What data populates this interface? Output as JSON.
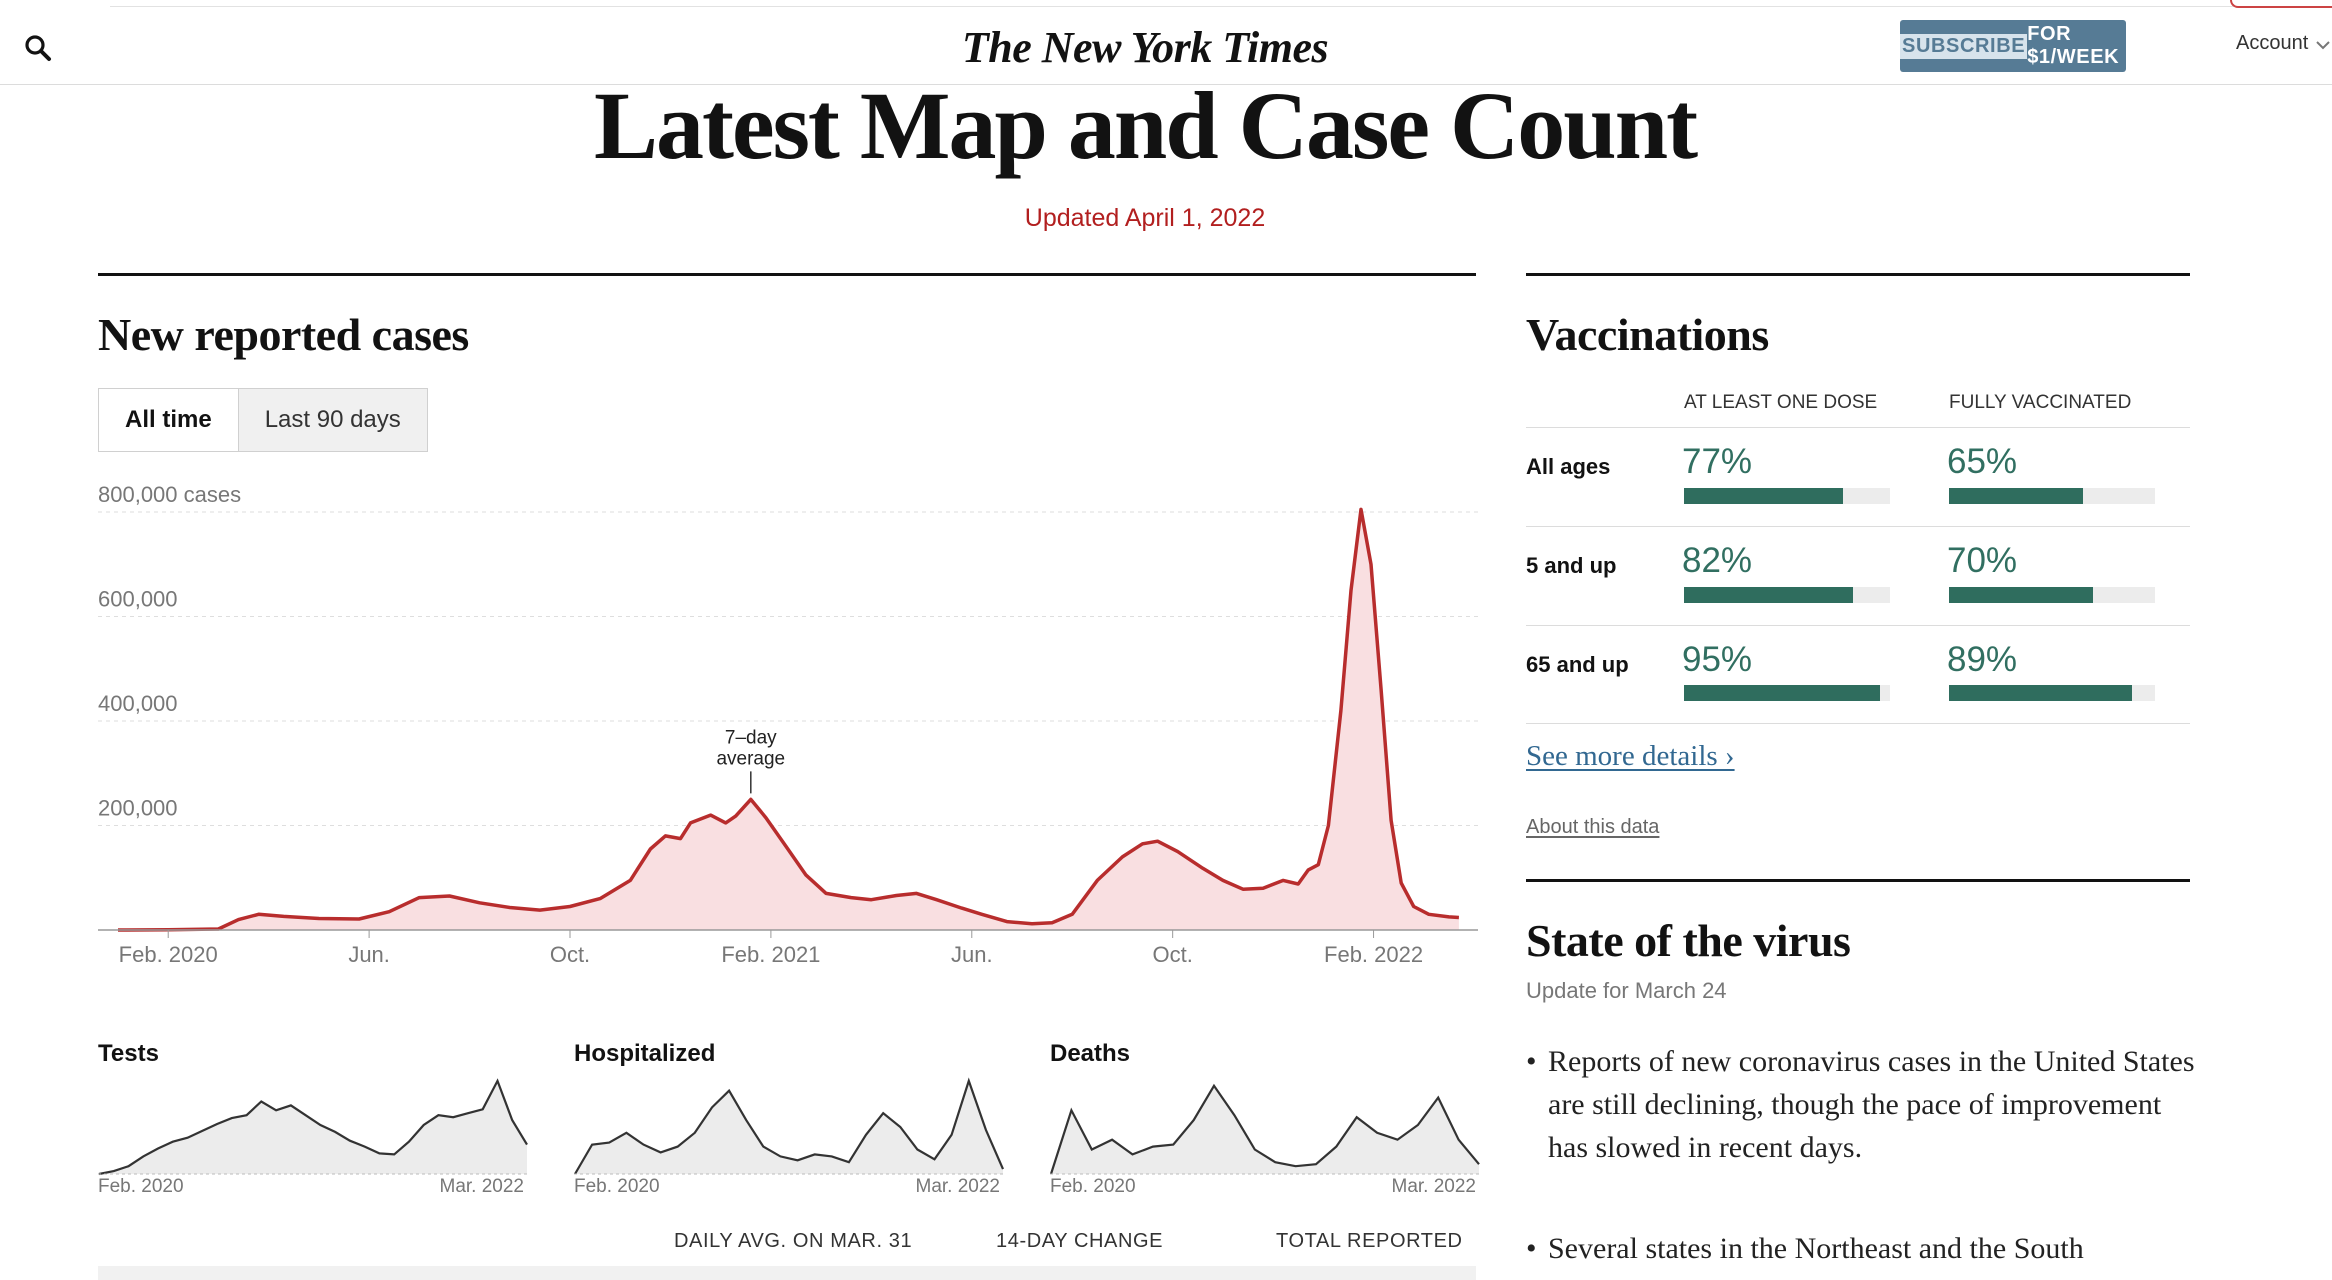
{
  "header": {
    "masthead": "The New York Times",
    "subscribe_highlight": "SUBSCRIBE",
    "subscribe_rest": " FOR $1/WEEK",
    "account": "Account"
  },
  "hero": {
    "title": "Latest Map and Case Count",
    "updated": "Updated April 1, 2022"
  },
  "cases": {
    "title": "New reported cases",
    "toggle": [
      "All time",
      "Last 90 days"
    ],
    "annotation": [
      "7–day",
      "average"
    ]
  },
  "chart_data": [
    {
      "type": "area",
      "title": "New reported cases",
      "series_label": "7–day average",
      "ylabel": "cases",
      "ylim": [
        0,
        800000
      ],
      "y_ticks": [
        {
          "value": 800000,
          "label": "800,000 cases"
        },
        {
          "value": 600000,
          "label": "600,000"
        },
        {
          "value": 400000,
          "label": "400,000"
        },
        {
          "value": 200000,
          "label": "200,000"
        }
      ],
      "x_ticks": [
        "Feb. 2020",
        "Jun.",
        "Oct.",
        "Feb. 2021",
        "Jun.",
        "Oct.",
        "Feb. 2022"
      ],
      "x_tick_months": [
        1,
        5,
        9,
        13,
        17,
        21,
        25
      ],
      "month_range": [
        0,
        27
      ],
      "points": [
        [
          0.0,
          0
        ],
        [
          1.0,
          500
        ],
        [
          2.0,
          2000
        ],
        [
          2.4,
          20000
        ],
        [
          2.8,
          30000
        ],
        [
          3.3,
          26000
        ],
        [
          4.0,
          22000
        ],
        [
          4.8,
          21000
        ],
        [
          5.4,
          35000
        ],
        [
          6.0,
          62000
        ],
        [
          6.6,
          65000
        ],
        [
          7.2,
          52000
        ],
        [
          7.8,
          43000
        ],
        [
          8.4,
          38000
        ],
        [
          9.0,
          45000
        ],
        [
          9.6,
          60000
        ],
        [
          10.2,
          95000
        ],
        [
          10.6,
          155000
        ],
        [
          10.9,
          180000
        ],
        [
          11.2,
          175000
        ],
        [
          11.4,
          205000
        ],
        [
          11.8,
          220000
        ],
        [
          12.1,
          205000
        ],
        [
          12.3,
          218000
        ],
        [
          12.6,
          250000
        ],
        [
          12.9,
          215000
        ],
        [
          13.3,
          160000
        ],
        [
          13.7,
          105000
        ],
        [
          14.1,
          70000
        ],
        [
          14.6,
          62000
        ],
        [
          15.0,
          58000
        ],
        [
          15.5,
          66000
        ],
        [
          15.9,
          70000
        ],
        [
          16.3,
          58000
        ],
        [
          16.8,
          42000
        ],
        [
          17.2,
          30000
        ],
        [
          17.7,
          16000
        ],
        [
          18.2,
          12000
        ],
        [
          18.6,
          14000
        ],
        [
          19.0,
          30000
        ],
        [
          19.5,
          95000
        ],
        [
          20.0,
          140000
        ],
        [
          20.4,
          165000
        ],
        [
          20.7,
          170000
        ],
        [
          21.1,
          150000
        ],
        [
          21.6,
          118000
        ],
        [
          22.0,
          95000
        ],
        [
          22.4,
          78000
        ],
        [
          22.8,
          80000
        ],
        [
          23.2,
          95000
        ],
        [
          23.5,
          88000
        ],
        [
          23.7,
          115000
        ],
        [
          23.9,
          125000
        ],
        [
          24.1,
          200000
        ],
        [
          24.35,
          420000
        ],
        [
          24.55,
          650000
        ],
        [
          24.75,
          805000
        ],
        [
          24.95,
          700000
        ],
        [
          25.15,
          460000
        ],
        [
          25.35,
          210000
        ],
        [
          25.55,
          90000
        ],
        [
          25.8,
          45000
        ],
        [
          26.1,
          30000
        ],
        [
          26.5,
          25000
        ],
        [
          26.7,
          24000
        ]
      ]
    },
    {
      "type": "area",
      "title": "Tests",
      "x_ticks": [
        "Feb. 2020",
        "Mar. 2022"
      ],
      "values": [
        0.0,
        0.03,
        0.08,
        0.18,
        0.26,
        0.33,
        0.37,
        0.44,
        0.51,
        0.57,
        0.6,
        0.74,
        0.65,
        0.7,
        0.6,
        0.5,
        0.43,
        0.34,
        0.28,
        0.21,
        0.2,
        0.33,
        0.5,
        0.6,
        0.58,
        0.62,
        0.66,
        0.95,
        0.55,
        0.3
      ]
    },
    {
      "type": "area",
      "title": "Hospitalized",
      "x_ticks": [
        "Feb. 2020",
        "Mar. 2022"
      ],
      "values": [
        0.0,
        0.3,
        0.32,
        0.42,
        0.3,
        0.22,
        0.28,
        0.42,
        0.68,
        0.85,
        0.55,
        0.28,
        0.18,
        0.14,
        0.2,
        0.18,
        0.12,
        0.4,
        0.62,
        0.48,
        0.25,
        0.15,
        0.4,
        0.95,
        0.45,
        0.05
      ]
    },
    {
      "type": "area",
      "title": "Deaths",
      "x_ticks": [
        "Feb. 2020",
        "Mar. 2022"
      ],
      "values": [
        0.0,
        0.65,
        0.25,
        0.35,
        0.2,
        0.28,
        0.3,
        0.55,
        0.9,
        0.6,
        0.25,
        0.12,
        0.08,
        0.1,
        0.28,
        0.58,
        0.42,
        0.35,
        0.5,
        0.78,
        0.35,
        0.1
      ]
    }
  ],
  "stats": {
    "daily_avg": "DAILY AVG. ON MAR. 31",
    "change": "14-DAY CHANGE",
    "total": "TOTAL REPORTED"
  },
  "vaccinations": {
    "title": "Vaccinations",
    "col1": "AT LEAST ONE DOSE",
    "col2": "FULLY VACCINATED",
    "rows": [
      {
        "label": "All ages",
        "dose_pct": "77%",
        "dose_frac": 0.77,
        "full_pct": "65%",
        "full_frac": 0.65
      },
      {
        "label": "5 and up",
        "dose_pct": "82%",
        "dose_frac": 0.82,
        "full_pct": "70%",
        "full_frac": 0.7
      },
      {
        "label": "65 and up",
        "dose_pct": "95%",
        "dose_frac": 0.95,
        "full_pct": "89%",
        "full_frac": 0.89
      }
    ],
    "see_more": "See more details ›",
    "about": "About this data"
  },
  "state": {
    "title": "State of the virus",
    "update": "Update for March 24",
    "bullets": [
      "Reports of new coronavirus cases in the United States are still declining, though the pace of improvement has slowed in recent days.",
      "Several states in the Northeast and the South"
    ]
  },
  "colors": {
    "case_line": "#b82d2d",
    "case_fill": "#f9dfe1",
    "vacc_bar": "#2f6d5e",
    "subscribe_bg": "#567b95",
    "updated_text": "#b21f1f"
  }
}
